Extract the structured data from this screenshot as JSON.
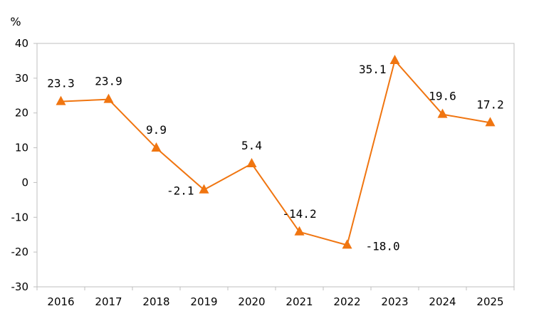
{
  "chart_data": {
    "type": "line",
    "title": "",
    "xlabel": "",
    "ylabel": "%",
    "categories": [
      "2016",
      "2017",
      "2018",
      "2019",
      "2020",
      "2021",
      "2022",
      "2023",
      "2024",
      "2025"
    ],
    "series": [
      {
        "values": [
          23.3,
          23.9,
          9.9,
          -2.1,
          5.4,
          -14.2,
          -18.0,
          35.1,
          19.6,
          17.2
        ],
        "labels": [
          "23.3",
          "23.9",
          "9.9",
          "-2.1",
          "5.4",
          "-14.2",
          "-18.0",
          "35.1",
          "19.6",
          "17.2"
        ],
        "color": "#F07510",
        "marker": "triangle"
      }
    ],
    "ylim": [
      -30,
      40
    ],
    "yticks": [
      "40",
      "30",
      "20",
      "10",
      "0",
      "-10",
      "-20",
      "-30"
    ],
    "grid": false,
    "legend": "none"
  }
}
